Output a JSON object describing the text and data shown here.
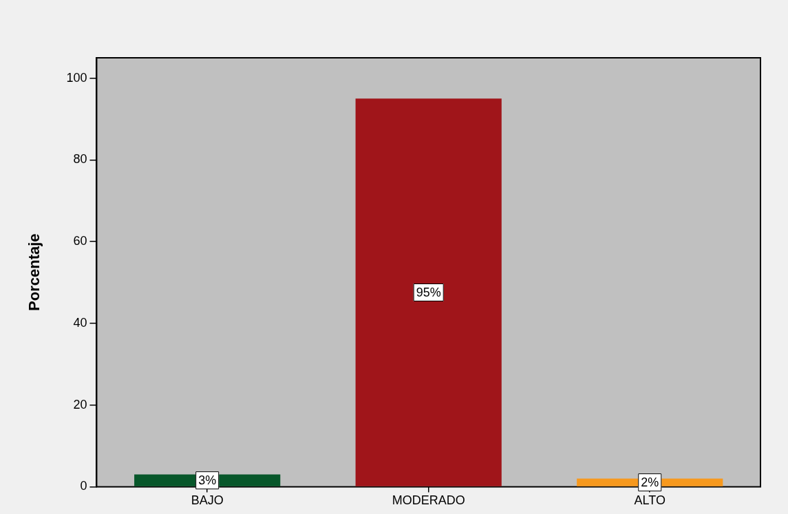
{
  "chart_data": {
    "type": "bar",
    "ylabel": "Porcentaje",
    "categories": [
      "BAJO",
      "MODERADO",
      "ALTO"
    ],
    "values": [
      3,
      95,
      2
    ],
    "colors": [
      "#07572a",
      "#a0151a",
      "#f7991e"
    ],
    "ylim": [
      0,
      105
    ],
    "yticks": [
      0,
      20,
      40,
      60,
      80,
      100
    ],
    "value_labels": [
      "3%",
      "95%",
      "2%"
    ],
    "grid": false,
    "legend": false
  }
}
